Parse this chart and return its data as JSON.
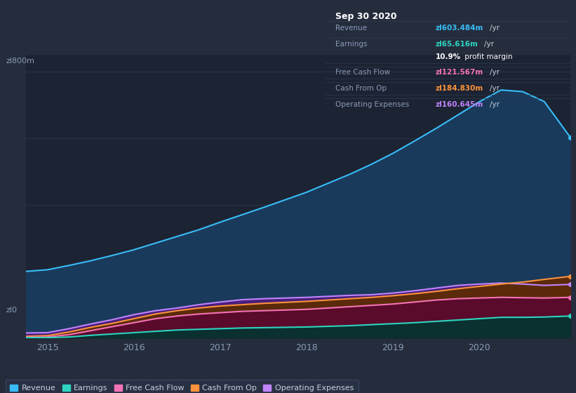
{
  "background_color": "#252d3d",
  "plot_bg_color": "#1c2333",
  "grid_color": "#2d3a50",
  "title_box": {
    "date": "Sep 30 2020",
    "rows": [
      {
        "label": "Revenue",
        "value": "zl603.484m",
        "value_color": "#38bdf8",
        "unit": "/yr"
      },
      {
        "label": "Earnings",
        "value": "zl65.616m",
        "value_color": "#2dd4bf",
        "unit": "/yr"
      },
      {
        "label": "",
        "value": "10.9%",
        "value_color": "#ffffff",
        "unit": " profit margin"
      },
      {
        "label": "Free Cash Flow",
        "value": "zl121.567m",
        "value_color": "#f472b6",
        "unit": "/yr"
      },
      {
        "label": "Cash From Op",
        "value": "zl184.830m",
        "value_color": "#fb923c",
        "unit": "/yr"
      },
      {
        "label": "Operating Expenses",
        "value": "zl160.645m",
        "value_color": "#c084fc",
        "unit": "/yr"
      }
    ]
  },
  "y_label_top": "zl800m",
  "y_label_zero": "zl0",
  "x_ticks": [
    2015,
    2016,
    2017,
    2018,
    2019,
    2020
  ],
  "series": {
    "Revenue": {
      "color": "#38bdf8",
      "fill_color": "#1a3a5c",
      "x": [
        2014.75,
        2015.0,
        2015.25,
        2015.5,
        2015.75,
        2016.0,
        2016.25,
        2016.5,
        2016.75,
        2017.0,
        2017.25,
        2017.5,
        2017.75,
        2018.0,
        2018.25,
        2018.5,
        2018.75,
        2019.0,
        2019.25,
        2019.5,
        2019.75,
        2020.0,
        2020.25,
        2020.5,
        2020.75,
        2021.05
      ],
      "y": [
        200,
        205,
        218,
        232,
        248,
        265,
        285,
        305,
        325,
        348,
        370,
        392,
        415,
        438,
        465,
        492,
        522,
        555,
        592,
        630,
        670,
        710,
        745,
        740,
        710,
        603
      ]
    },
    "Operating Expenses": {
      "color": "#c084fc",
      "fill_color": "#4a1e7a",
      "x": [
        2014.75,
        2015.0,
        2015.25,
        2015.5,
        2015.75,
        2016.0,
        2016.25,
        2016.5,
        2016.75,
        2017.0,
        2017.25,
        2017.5,
        2017.75,
        2018.0,
        2018.25,
        2018.5,
        2018.75,
        2019.0,
        2019.25,
        2019.5,
        2019.75,
        2020.0,
        2020.25,
        2020.5,
        2020.75,
        2021.05
      ],
      "y": [
        15,
        16,
        28,
        42,
        55,
        70,
        82,
        90,
        100,
        108,
        115,
        118,
        120,
        122,
        125,
        128,
        130,
        135,
        142,
        150,
        158,
        162,
        165,
        162,
        158,
        161
      ]
    },
    "Cash From Op": {
      "color": "#fb923c",
      "fill_color": "#5a2a0a",
      "x": [
        2014.75,
        2015.0,
        2015.25,
        2015.5,
        2015.75,
        2016.0,
        2016.25,
        2016.5,
        2016.75,
        2017.0,
        2017.25,
        2017.5,
        2017.75,
        2018.0,
        2018.25,
        2018.5,
        2018.75,
        2019.0,
        2019.25,
        2019.5,
        2019.75,
        2020.0,
        2020.25,
        2020.5,
        2020.75,
        2021.05
      ],
      "y": [
        5,
        7,
        18,
        32,
        44,
        58,
        72,
        82,
        90,
        96,
        100,
        104,
        107,
        110,
        114,
        118,
        122,
        127,
        133,
        140,
        148,
        155,
        162,
        168,
        176,
        185
      ]
    },
    "Free Cash Flow": {
      "color": "#f472b6",
      "fill_color": "#5a0a2a",
      "x": [
        2014.75,
        2015.0,
        2015.25,
        2015.5,
        2015.75,
        2016.0,
        2016.25,
        2016.5,
        2016.75,
        2017.0,
        2017.25,
        2017.5,
        2017.75,
        2018.0,
        2018.25,
        2018.5,
        2018.75,
        2019.0,
        2019.25,
        2019.5,
        2019.75,
        2020.0,
        2020.25,
        2020.5,
        2020.75,
        2021.05
      ],
      "y": [
        2,
        3,
        10,
        22,
        34,
        46,
        58,
        66,
        72,
        76,
        80,
        82,
        84,
        86,
        90,
        94,
        98,
        102,
        108,
        114,
        118,
        120,
        122,
        121,
        120,
        122
      ]
    },
    "Earnings": {
      "color": "#2dd4bf",
      "fill_color": "#0a3030",
      "x": [
        2014.75,
        2015.0,
        2015.25,
        2015.5,
        2015.75,
        2016.0,
        2016.25,
        2016.5,
        2016.75,
        2017.0,
        2017.25,
        2017.5,
        2017.75,
        2018.0,
        2018.25,
        2018.5,
        2018.75,
        2019.0,
        2019.25,
        2019.5,
        2019.75,
        2020.0,
        2020.25,
        2020.5,
        2020.75,
        2021.05
      ],
      "y": [
        1,
        1,
        3,
        8,
        12,
        16,
        20,
        24,
        26,
        28,
        30,
        31,
        32,
        33,
        35,
        37,
        40,
        43,
        46,
        50,
        54,
        58,
        62,
        62,
        63,
        66
      ]
    }
  },
  "legend": [
    {
      "label": "Revenue",
      "color": "#38bdf8"
    },
    {
      "label": "Earnings",
      "color": "#2dd4bf"
    },
    {
      "label": "Free Cash Flow",
      "color": "#f472b6"
    },
    {
      "label": "Cash From Op",
      "color": "#fb923c"
    },
    {
      "label": "Operating Expenses",
      "color": "#c084fc"
    }
  ],
  "ylim": [
    0,
    850
  ],
  "xlim": [
    2014.75,
    2021.05
  ]
}
